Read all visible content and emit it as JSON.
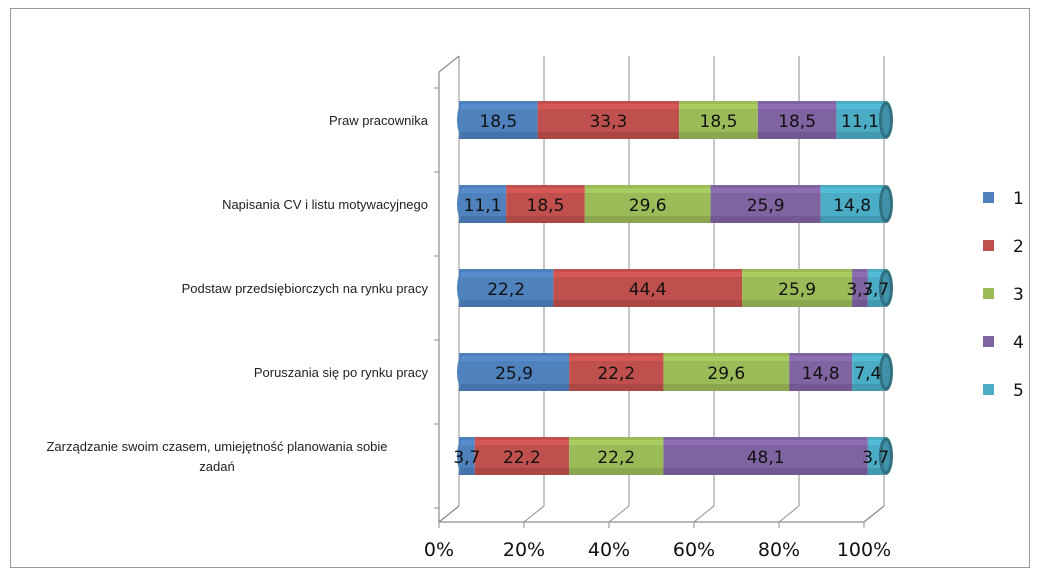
{
  "chart_data": {
    "type": "bar",
    "orientation": "horizontal",
    "stacked": "percent",
    "style": "3d-cylinder",
    "categories": [
      "Praw pracownika",
      "Napisania CV i listu motywacyjnego",
      "Podstaw przedsiębiorczych na rynku pracy",
      "Poruszania się po rynku pracy",
      "Zarządzanie swoim czasem, umiejętność planowania sobie zadań"
    ],
    "series": [
      {
        "name": "1",
        "color": "#4f81bd",
        "values": [
          18.5,
          11.1,
          22.2,
          25.9,
          3.7
        ]
      },
      {
        "name": "2",
        "color": "#c0504d",
        "values": [
          33.3,
          18.5,
          44.4,
          22.2,
          22.2
        ]
      },
      {
        "name": "3",
        "color": "#9bbb59",
        "values": [
          18.5,
          29.6,
          25.9,
          29.6,
          22.2
        ]
      },
      {
        "name": "4",
        "color": "#8064a2",
        "values": [
          18.5,
          25.9,
          3.7,
          14.8,
          48.1
        ]
      },
      {
        "name": "5",
        "color": "#4bacc6",
        "values": [
          11.1,
          14.8,
          3.7,
          7.4,
          3.7
        ]
      }
    ],
    "data_labels": [
      [
        "18,5",
        "11,1",
        "22,2",
        "25,9",
        "3,7"
      ],
      [
        "33,3",
        "18,5",
        "44,4",
        "22,2",
        "22,2"
      ],
      [
        "18,5",
        "29,6",
        "25,9",
        "29,6",
        "22,2"
      ],
      [
        "18,5",
        "25,9",
        "3,7",
        "14,8",
        "48,1"
      ],
      [
        "11,1",
        "14,8",
        "3,7",
        "7,4",
        "3,7"
      ]
    ],
    "x_ticks": [
      "0%",
      "20%",
      "40%",
      "60%",
      "80%",
      "100%"
    ],
    "xlim": [
      0,
      100
    ],
    "grid": true,
    "legend_position": "right"
  }
}
